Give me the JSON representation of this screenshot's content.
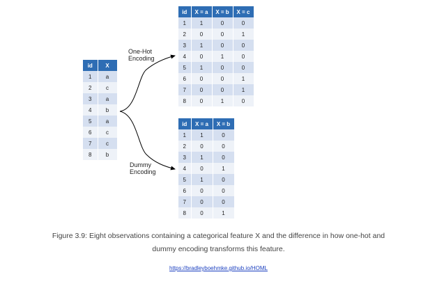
{
  "original_table": {
    "headers": [
      "id",
      "X"
    ],
    "rows": [
      [
        "1",
        "a"
      ],
      [
        "2",
        "c"
      ],
      [
        "3",
        "a"
      ],
      [
        "4",
        "b"
      ],
      [
        "5",
        "a"
      ],
      [
        "6",
        "c"
      ],
      [
        "7",
        "c"
      ],
      [
        "8",
        "b"
      ]
    ]
  },
  "one_hot_table": {
    "headers": [
      "id",
      "X = a",
      "X = b",
      "X = c"
    ],
    "rows": [
      [
        "1",
        "1",
        "0",
        "0"
      ],
      [
        "2",
        "0",
        "0",
        "1"
      ],
      [
        "3",
        "1",
        "0",
        "0"
      ],
      [
        "4",
        "0",
        "1",
        "0"
      ],
      [
        "5",
        "1",
        "0",
        "0"
      ],
      [
        "6",
        "0",
        "0",
        "1"
      ],
      [
        "7",
        "0",
        "0",
        "1"
      ],
      [
        "8",
        "0",
        "1",
        "0"
      ]
    ]
  },
  "dummy_table": {
    "headers": [
      "id",
      "X = a",
      "X = b"
    ],
    "rows": [
      [
        "1",
        "1",
        "0"
      ],
      [
        "2",
        "0",
        "0"
      ],
      [
        "3",
        "1",
        "0"
      ],
      [
        "4",
        "0",
        "1"
      ],
      [
        "5",
        "1",
        "0"
      ],
      [
        "6",
        "0",
        "0"
      ],
      [
        "7",
        "0",
        "0"
      ],
      [
        "8",
        "0",
        "1"
      ]
    ]
  },
  "labels": {
    "one_hot_line1": "One-Hot",
    "one_hot_line2": "Encoding",
    "dummy_line1": "Dummy",
    "dummy_line2": "Encoding"
  },
  "caption": {
    "line1": "Figure 3.9: Eight observations containing a categorical feature X and the difference in how one-hot and",
    "line2": "dummy encoding transforms this feature."
  },
  "source_link": "https://bradleyboehmke.github.io/HOML",
  "colors": {
    "header_bg": "#2e6db4",
    "row_odd": "#d5dff0",
    "row_even": "#eef2f8",
    "arrow": "#000000"
  }
}
